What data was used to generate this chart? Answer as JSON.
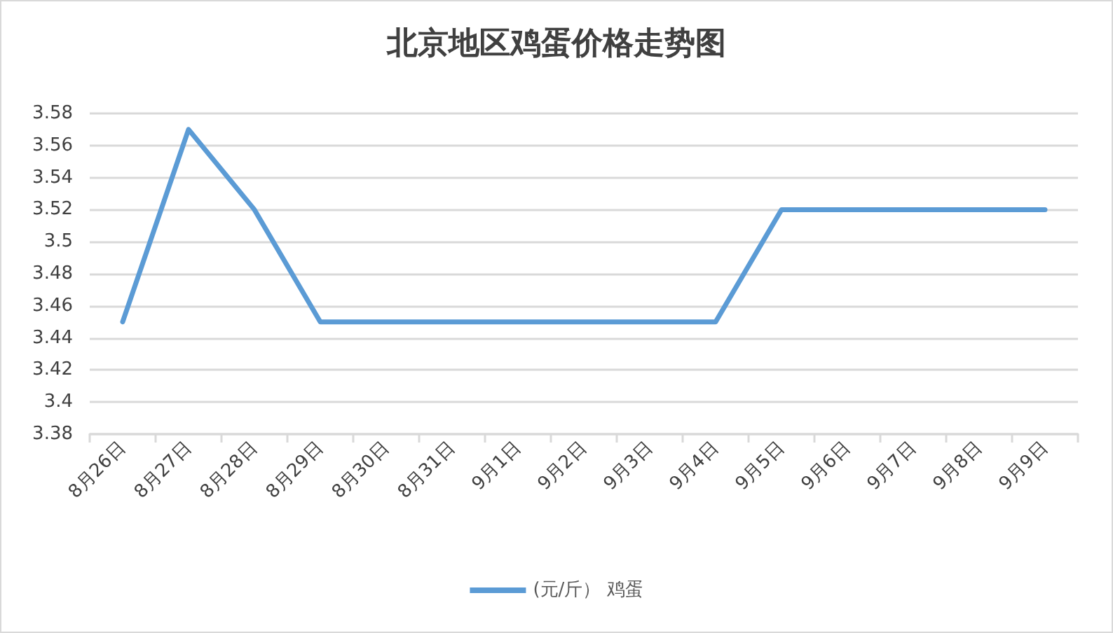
{
  "chart_data": {
    "type": "line",
    "title": "北京地区鸡蛋价格走势图",
    "categories": [
      "8月26日",
      "8月27日",
      "8月28日",
      "8月29日",
      "8月30日",
      "8月31日",
      "9月1日",
      "9月2日",
      "9月3日",
      "9月4日",
      "9月5日",
      "9月6日",
      "9月7日",
      "9月8日",
      "9月9日"
    ],
    "series": [
      {
        "name": "(元/斤） 鸡蛋",
        "color": "#5b9bd5",
        "values": [
          3.45,
          3.57,
          3.52,
          3.45,
          3.45,
          3.45,
          3.45,
          3.45,
          3.45,
          3.45,
          3.52,
          3.52,
          3.52,
          3.52,
          3.52
        ]
      }
    ],
    "ylim": [
      3.38,
      3.58
    ],
    "yticks": [
      3.38,
      3.4,
      3.42,
      3.44,
      3.46,
      3.48,
      3.5,
      3.52,
      3.54,
      3.56,
      3.58
    ],
    "grid": "y",
    "legend": "bottom",
    "marker": "none",
    "line_style": "solid"
  }
}
